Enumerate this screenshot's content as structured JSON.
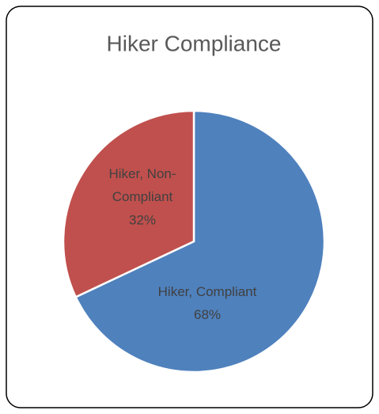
{
  "chart_data": {
    "type": "pie",
    "title": "Hiker Compliance",
    "categories": [
      "Hiker, Compliant",
      "Hiker, Non-Compliant"
    ],
    "values": [
      68,
      32
    ],
    "value_labels": [
      "68%",
      "32%"
    ],
    "colors": [
      "#4f81bd",
      "#c0504d"
    ]
  }
}
